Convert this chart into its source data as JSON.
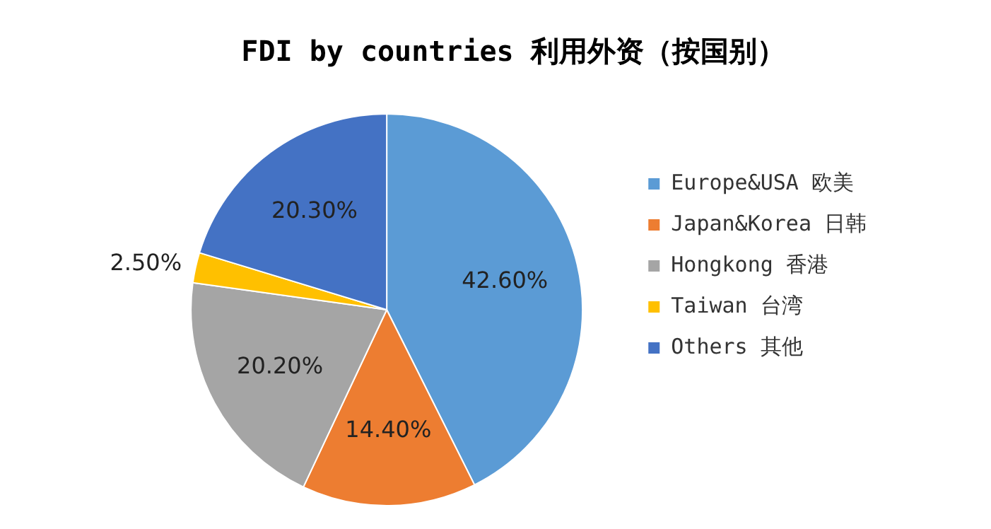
{
  "chart_data": {
    "type": "pie",
    "title": "FDI by countries 利用外资（按国别）",
    "categories": [
      "Europe&USA 欧美",
      "Japan&Korea 日韩",
      "Hongkong 香港",
      "Taiwan 台湾",
      "Others 其他"
    ],
    "values": [
      42.6,
      14.4,
      20.2,
      2.5,
      20.3
    ],
    "colors": [
      "#5b9bd5",
      "#ed7d31",
      "#a5a5a5",
      "#ffc000",
      "#4472c4"
    ],
    "value_labels": [
      "42.60%",
      "14.40%",
      "20.20%",
      "2.50%",
      "20.30%"
    ],
    "legend": "right"
  }
}
